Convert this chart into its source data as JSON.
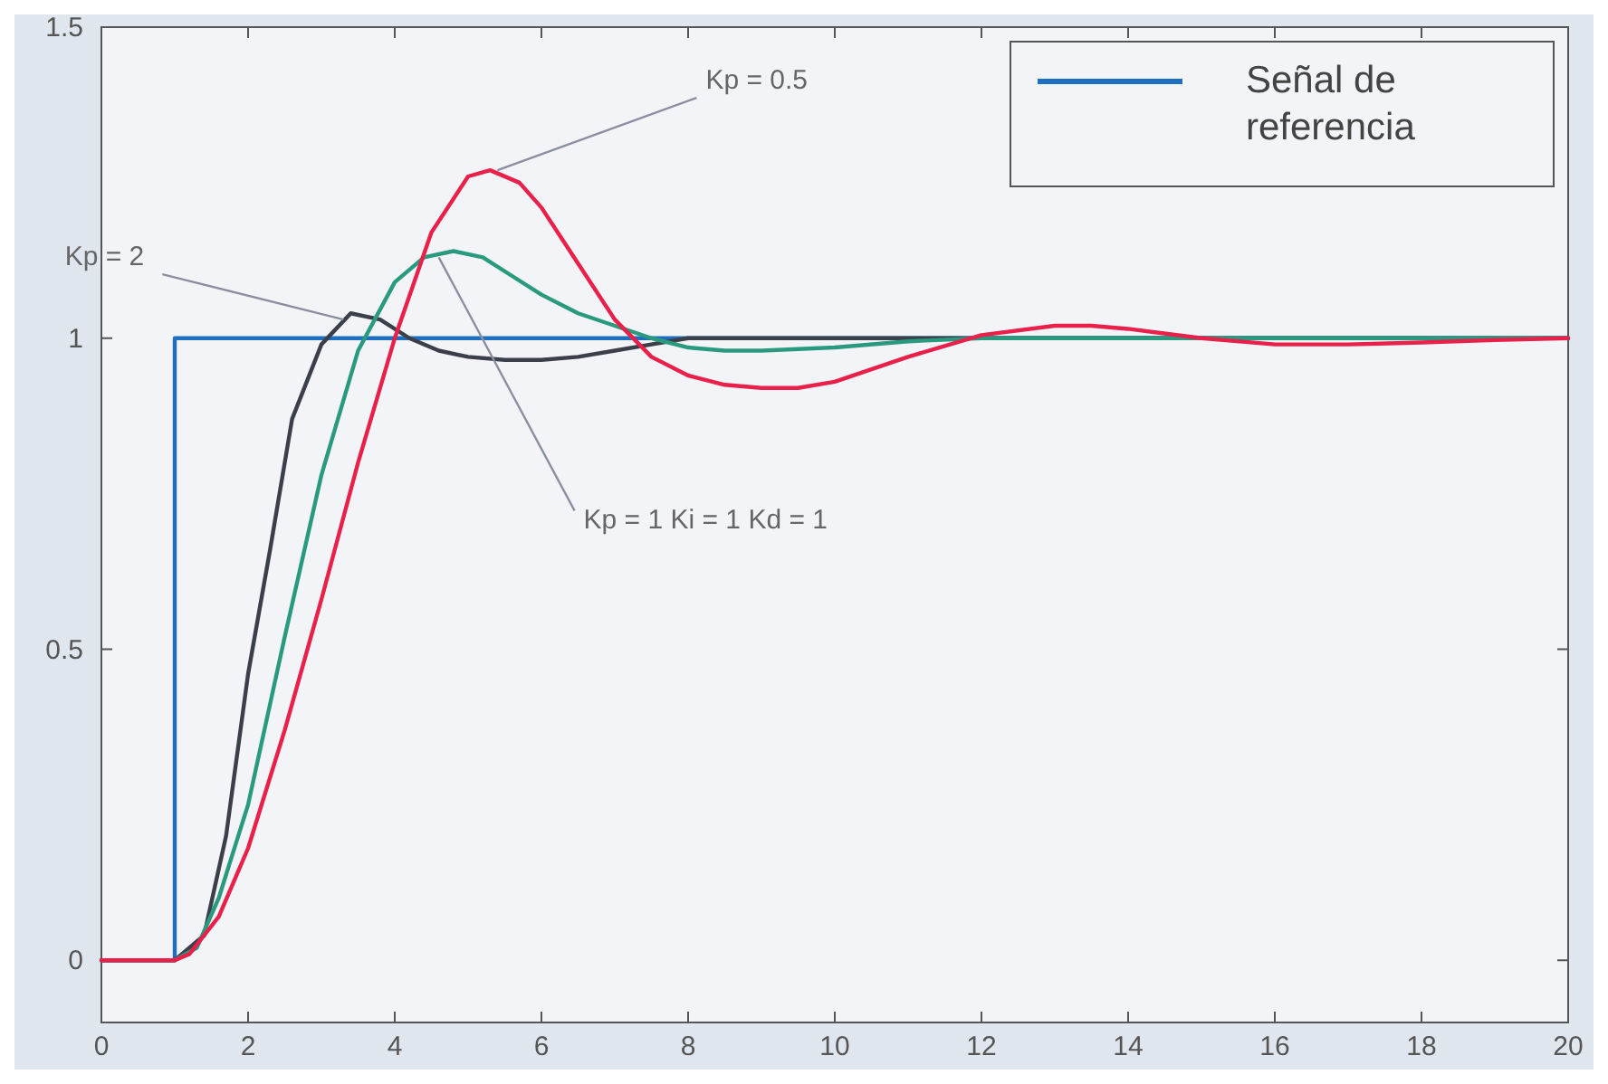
{
  "chart_data": {
    "type": "line",
    "xlim": [
      0,
      20
    ],
    "ylim": [
      -0.1,
      1.5
    ],
    "xticks": [
      0,
      2,
      4,
      6,
      8,
      10,
      12,
      14,
      16,
      18,
      20
    ],
    "yticks": [
      0,
      0.5,
      1,
      1.5
    ],
    "legend": "top right",
    "grid": false,
    "series": [
      {
        "name": "Señal de referencia",
        "color": "#1f6fc0",
        "x": [
          0,
          1,
          1,
          20
        ],
        "values": [
          0,
          0,
          1,
          1
        ]
      },
      {
        "color": "#3a3f4a",
        "x": [
          0,
          1,
          1.4,
          1.7,
          2,
          2.3,
          2.6,
          3,
          3.4,
          3.8,
          4.2,
          4.6,
          5,
          5.5,
          6,
          6.5,
          7,
          7.5,
          8,
          9,
          10,
          12,
          14,
          16,
          18,
          20
        ],
        "values": [
          0,
          0,
          0.04,
          0.2,
          0.46,
          0.66,
          0.87,
          0.99,
          1.04,
          1.03,
          1.0,
          0.98,
          0.97,
          0.965,
          0.965,
          0.97,
          0.98,
          0.99,
          1.0,
          1.0,
          1.0,
          1.0,
          1.0,
          1.0,
          1.0,
          1.0
        ]
      },
      {
        "color": "#2a9a7e",
        "x": [
          0,
          1,
          1.3,
          1.6,
          2,
          2.5,
          3,
          3.5,
          4,
          4.4,
          4.8,
          5.2,
          5.6,
          6,
          6.5,
          7,
          7.5,
          8,
          8.5,
          9,
          10,
          11,
          12,
          14,
          16,
          18,
          20
        ],
        "values": [
          0,
          0,
          0.02,
          0.1,
          0.25,
          0.52,
          0.78,
          0.98,
          1.09,
          1.13,
          1.14,
          1.13,
          1.1,
          1.07,
          1.04,
          1.02,
          1.0,
          0.985,
          0.98,
          0.98,
          0.985,
          0.995,
          1.0,
          1.0,
          1.0,
          1.0,
          1.0
        ]
      },
      {
        "color": "#e8204a",
        "x": [
          0,
          1,
          1.2,
          1.6,
          2,
          2.5,
          3,
          3.5,
          4,
          4.5,
          5,
          5.3,
          5.7,
          6,
          6.5,
          7,
          7.5,
          8,
          8.5,
          9,
          9.5,
          10,
          11,
          12,
          13,
          13.5,
          14,
          15,
          16,
          17,
          18,
          19,
          20
        ],
        "values": [
          0,
          0,
          0.01,
          0.07,
          0.18,
          0.37,
          0.58,
          0.8,
          1.0,
          1.17,
          1.26,
          1.27,
          1.25,
          1.21,
          1.12,
          1.03,
          0.97,
          0.94,
          0.925,
          0.92,
          0.92,
          0.93,
          0.97,
          1.005,
          1.02,
          1.02,
          1.015,
          1.0,
          0.99,
          0.99,
          0.993,
          0.997,
          1.0
        ]
      }
    ],
    "annotations": [
      {
        "text": "Kp = 0.5",
        "x": 5.4,
        "y": 1.27
      },
      {
        "text": "Kp = 2",
        "x": 3.3,
        "y": 1.03
      },
      {
        "text": "Kp = 1  Ki = 1  Kd = 1",
        "x": 4.6,
        "y": 1.13
      }
    ]
  }
}
